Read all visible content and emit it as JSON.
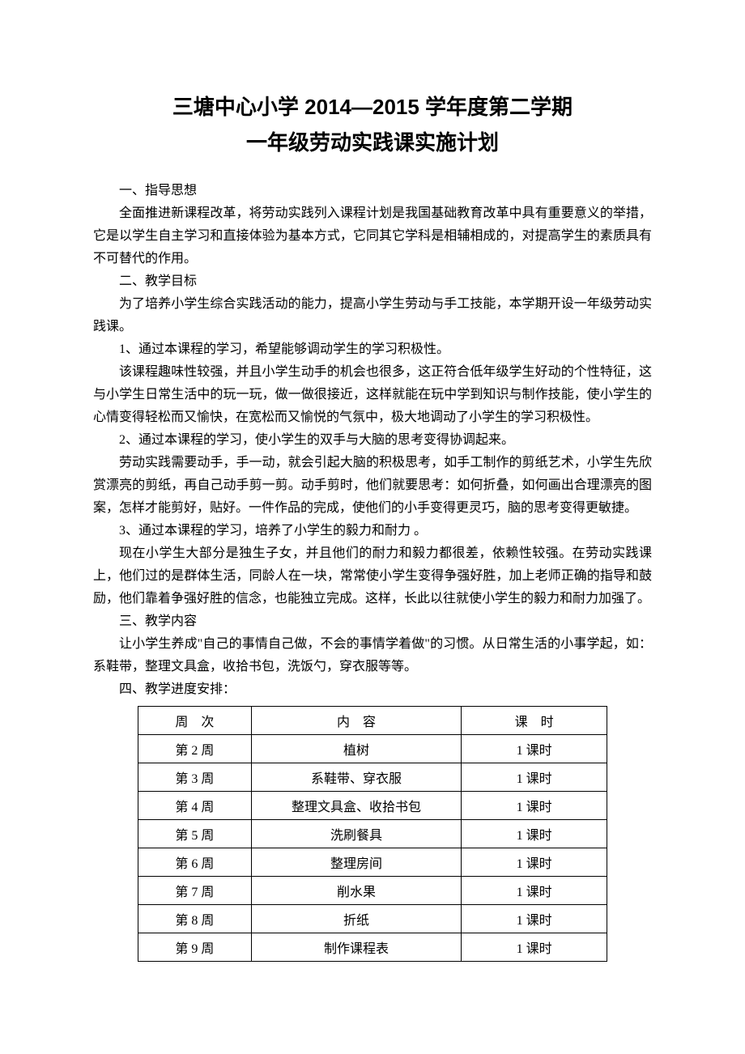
{
  "title": {
    "line1": "三塘中心小学 2014—2015 学年度第二学期",
    "line2": "一年级劳动实践课实施计划"
  },
  "sections": {
    "s1_heading": "一、指导思想",
    "s1_p1": "全面推进新课程改革，将劳动实践列入课程计划是我国基础教育改革中具有重要意义的举措，它是以学生自主学习和直接体验为基本方式，它同其它学科是相辅相成的，对提高学生的素质具有不可替代的作用。",
    "s2_heading": "二、教学目标",
    "s2_p1": "为了培养小学生综合实践活动的能力，提高小学生劳动与手工技能，本学期开设一年级劳动实践课。",
    "s2_p2": "1、通过本课程的学习，希望能够调动学生的学习积极性。",
    "s2_p3": "该课程趣味性较强，并且小学生动手的机会也很多，这正符合低年级学生好动的个性特征，这与小学生日常生活中的玩一玩，做一做很接近，这样就能在玩中学到知识与制作技能，使小学生的心情变得轻松而又愉快，在宽松而又愉悦的气氛中，极大地调动了小学生的学习积极性。",
    "s2_p4": "2、通过本课程的学习，使小学生的双手与大脑的思考变得协调起来。",
    "s2_p5": "劳动实践需要动手，手一动，就会引起大脑的积极思考，如手工制作的剪纸艺术，小学生先欣赏漂亮的剪纸，再自己动手剪一剪。动手剪时，他们就要思考：如何折叠，如何画出合理漂亮的图案，怎样才能剪好，贴好。一件作品的完成，使他们的小手变得更灵巧，脑的思考变得更敏捷。",
    "s2_p6": "3、通过本课程的学习，培养了小学生的毅力和耐力 。",
    "s2_p7": "现在小学生大部分是独生子女，并且他们的耐力和毅力都很差，依赖性较强。在劳动实践课上，他们过的是群体生活，同龄人在一块，常常使小学生变得争强好胜，加上老师正确的指导和鼓励，他们靠着争强好胜的信念，也能独立完成。这样，长此以往就使小学生的毅力和耐力加强了。",
    "s3_heading": "三、教学内容",
    "s3_p1": "让小学生养成\"自己的事情自己做，不会的事情学着做\"的习惯。从日常生活的小事学起，如：系鞋带，整理文具盒，收拾书包，洗饭勺，穿衣服等等。",
    "s4_heading": "四、教学进度安排："
  },
  "table": {
    "headers": {
      "week": "周　次",
      "content": "内　容",
      "hours": "课　时"
    },
    "rows": [
      {
        "week": "第 2 周",
        "content": "植树",
        "hours": "1 课时"
      },
      {
        "week": "第 3 周",
        "content": "系鞋带、穿衣服",
        "hours": "1 课时"
      },
      {
        "week": "第 4 周",
        "content": "整理文具盒、收拾书包",
        "hours": "1 课时"
      },
      {
        "week": "第 5 周",
        "content": "洗刷餐具",
        "hours": "1 课时"
      },
      {
        "week": "第 6 周",
        "content": "整理房间",
        "hours": "1 课时"
      },
      {
        "week": "第 7 周",
        "content": "削水果",
        "hours": "1 课时"
      },
      {
        "week": "第 8 周",
        "content": "折纸",
        "hours": "1 课时"
      },
      {
        "week": "第 9 周",
        "content": "制作课程表",
        "hours": "1 课时"
      }
    ]
  },
  "style": {
    "background_color": "#ffffff",
    "text_color": "#000000",
    "title_fontsize": 26,
    "body_fontsize": 16,
    "table_border_color": "#000000"
  }
}
